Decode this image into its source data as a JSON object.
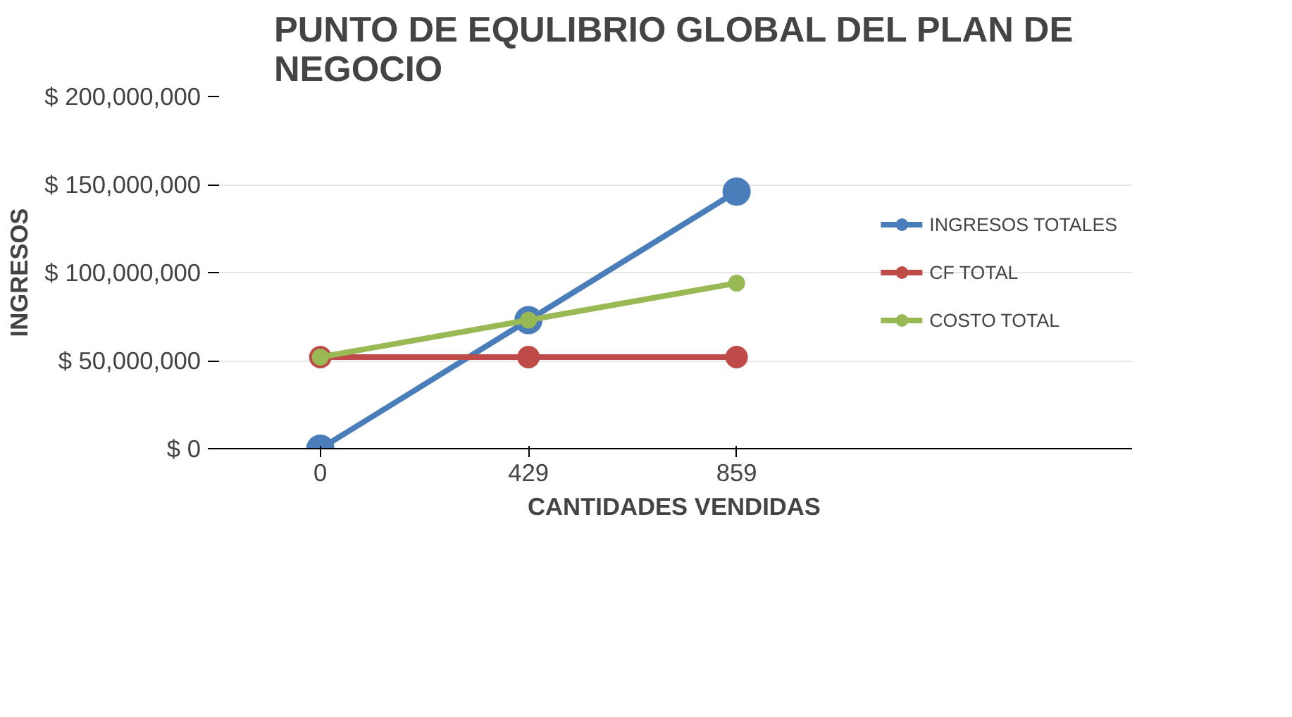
{
  "chart_data": {
    "type": "line",
    "title": "PUNTO DE EQULIBRIO GLOBAL DEL PLAN DE\nNEGOCIO",
    "xlabel": "CANTIDADES VENDIDAS",
    "ylabel": "INGRESOS",
    "categories": [
      "0",
      "429",
      "859"
    ],
    "series": [
      {
        "name": "INGRESOS TOTALES",
        "color": "#4a7ebb",
        "values": [
          0,
          73000000,
          146000000
        ]
      },
      {
        "name": "CF TOTAL",
        "color": "#be4b48",
        "values": [
          52000000,
          52000000,
          52000000
        ]
      },
      {
        "name": "COSTO TOTAL",
        "color": "#98b954",
        "values": [
          52000000,
          73000000,
          94000000
        ]
      }
    ],
    "ylim": [
      0,
      200000000
    ],
    "yticks": [
      {
        "value": 0,
        "label": "$ 0"
      },
      {
        "value": 50000000,
        "label": "$ 50,000,000"
      },
      {
        "value": 100000000,
        "label": "$ 100,000,000"
      },
      {
        "value": 150000000,
        "label": "$ 150,000,000"
      },
      {
        "value": 200000000,
        "label": "$ 200,000,000"
      }
    ],
    "grid": "y",
    "legend": "right",
    "marker": "circle",
    "line_style": "solid"
  }
}
